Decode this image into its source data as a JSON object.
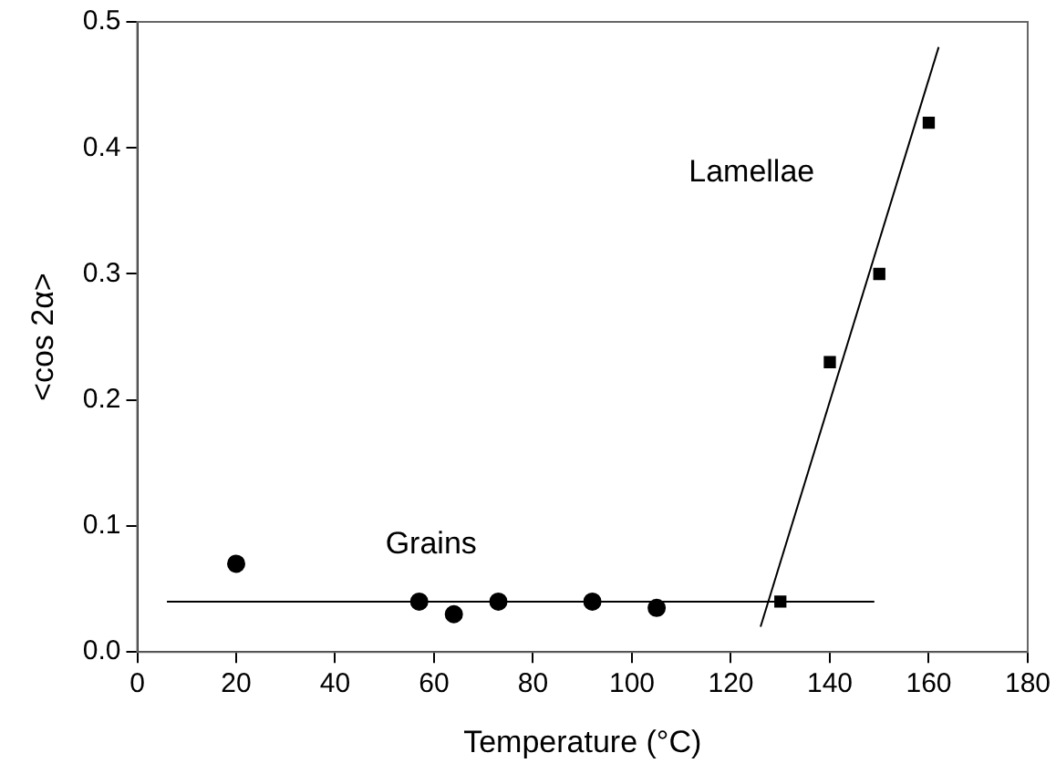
{
  "chart_data": {
    "type": "scatter",
    "xlabel": "Temperature (°C)",
    "ylabel": "<cos 2α>",
    "grid": false,
    "legend": false,
    "xlim": [
      0,
      180
    ],
    "xticks": [
      0,
      20,
      40,
      60,
      80,
      100,
      120,
      140,
      160,
      180
    ],
    "ylim": [
      0,
      0.5
    ],
    "yticks": [
      {
        "value": 0,
        "label": "0.0"
      },
      0.1,
      0.2,
      0.3,
      0.4,
      0.5
    ],
    "series": [
      {
        "marker": "circle",
        "color": "#000000",
        "x": [
          20,
          57,
          64,
          73,
          92,
          105
        ],
        "values": [
          0.07,
          0.04,
          0.03,
          0.04,
          0.04,
          0.035
        ]
      },
      {
        "marker": "square",
        "color": "#000000",
        "x": [
          130,
          140,
          150,
          160
        ],
        "values": [
          0.04,
          0.23,
          0.3,
          0.42
        ]
      },
      {
        "type": "line",
        "marker": "none",
        "color": "#000000",
        "x": [
          6,
          149
        ],
        "values": [
          0.04,
          0.04
        ]
      },
      {
        "type": "line",
        "marker": "none",
        "color": "#000000",
        "x": [
          126,
          162
        ],
        "values": [
          0.02,
          0.48
        ]
      }
    ],
    "annotations": [
      "Grains",
      "Lamellae"
    ]
  }
}
